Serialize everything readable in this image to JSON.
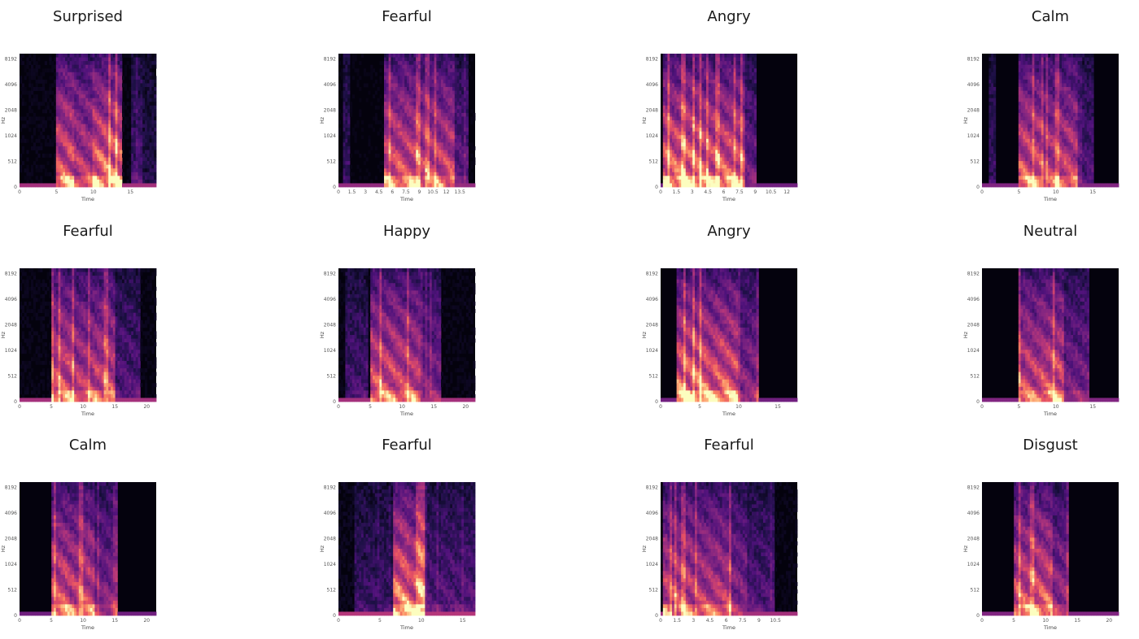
{
  "figure": {
    "colormap": "magma",
    "columns": 4,
    "rows": 3
  },
  "chart_data": [
    {
      "type": "heatmap",
      "title": "Surprised",
      "xlabel": "Time",
      "ylabel": "Hz",
      "xticks": [
        "0",
        "5",
        "10",
        "15"
      ],
      "yticks": [
        "0",
        "512",
        "1024",
        "2048",
        "4096",
        "8192"
      ],
      "x_max": 18.5,
      "segments": [
        [
          5,
          7.5,
          0.85
        ],
        [
          7.5,
          10,
          0.7
        ],
        [
          10,
          13.8,
          0.9
        ],
        [
          15,
          16.5,
          0.25
        ],
        [
          16.5,
          18.5,
          0.1
        ]
      ],
      "noise_floor": 0.2
    },
    {
      "type": "heatmap",
      "title": "Fearful",
      "xlabel": "Time",
      "ylabel": "Hz",
      "xticks": [
        "0",
        "1.5",
        "3",
        "4.5",
        "6",
        "7.5",
        "9",
        "10.5",
        "12",
        "13.5"
      ],
      "yticks": [
        "0",
        "512",
        "1024",
        "2048",
        "4096",
        "8192"
      ],
      "x_max": 15.2,
      "segments": [
        [
          0.5,
          1.2,
          0.2
        ],
        [
          5,
          9,
          0.8
        ],
        [
          9,
          13,
          0.75
        ],
        [
          13,
          14.5,
          0.35
        ]
      ],
      "noise_floor": 0.15
    },
    {
      "type": "heatmap",
      "title": "Angry",
      "xlabel": "Time",
      "ylabel": "Hz",
      "xticks": [
        "0",
        "1.5",
        "3",
        "4.5",
        "6",
        "7.5",
        "9",
        "10.5",
        "12"
      ],
      "yticks": [
        "0",
        "512",
        "1024",
        "2048",
        "4096",
        "8192"
      ],
      "x_max": 13.0,
      "segments": [
        [
          0.2,
          4,
          0.9
        ],
        [
          4,
          8,
          0.85
        ],
        [
          8,
          9.2,
          0.4
        ]
      ],
      "noise_floor": 0.05
    },
    {
      "type": "heatmap",
      "title": "Calm",
      "xlabel": "Time",
      "ylabel": "Hz",
      "xticks": [
        "0",
        "5",
        "10",
        "15"
      ],
      "yticks": [
        "0",
        "512",
        "1024",
        "2048",
        "4096",
        "8192"
      ],
      "x_max": 18.5,
      "segments": [
        [
          5,
          8,
          0.8
        ],
        [
          8,
          10,
          0.7
        ],
        [
          10,
          13,
          0.75
        ],
        [
          13,
          15,
          0.3
        ],
        [
          1,
          2,
          0.2
        ]
      ],
      "noise_floor": 0.1
    },
    {
      "type": "heatmap",
      "title": "Fearful",
      "xlabel": "Time",
      "ylabel": "Hz",
      "xticks": [
        "0",
        "5",
        "10",
        "15",
        "20"
      ],
      "yticks": [
        "0",
        "512",
        "1024",
        "2048",
        "4096",
        "8192"
      ],
      "x_max": 21.5,
      "segments": [
        [
          5,
          8.5,
          0.8
        ],
        [
          8.5,
          12,
          0.7
        ],
        [
          12,
          15,
          0.75
        ],
        [
          15,
          19,
          0.3
        ]
      ],
      "noise_floor": 0.2
    },
    {
      "type": "heatmap",
      "title": "Happy",
      "xlabel": "Time",
      "ylabel": "Hz",
      "xticks": [
        "0",
        "5",
        "10",
        "15",
        "20"
      ],
      "yticks": [
        "0",
        "512",
        "1024",
        "2048",
        "4096",
        "8192"
      ],
      "x_max": 21.5,
      "segments": [
        [
          1,
          4.5,
          0.25
        ],
        [
          5,
          9,
          0.8
        ],
        [
          9,
          13,
          0.75
        ],
        [
          13,
          16,
          0.45
        ]
      ],
      "noise_floor": 0.2
    },
    {
      "type": "heatmap",
      "title": "Angry",
      "xlabel": "Time",
      "ylabel": "Hz",
      "xticks": [
        "0",
        "5",
        "10",
        "15"
      ],
      "yticks": [
        "0",
        "512",
        "1024",
        "2048",
        "4096",
        "8192"
      ],
      "x_max": 17.5,
      "segments": [
        [
          2,
          6,
          0.9
        ],
        [
          6,
          10,
          0.85
        ],
        [
          10,
          12.5,
          0.5
        ]
      ],
      "noise_floor": 0.05
    },
    {
      "type": "heatmap",
      "title": "Neutral",
      "xlabel": "Time",
      "ylabel": "Hz",
      "xticks": [
        "0",
        "5",
        "10",
        "15"
      ],
      "yticks": [
        "0",
        "512",
        "1024",
        "2048",
        "4096",
        "8192"
      ],
      "x_max": 18.5,
      "segments": [
        [
          5,
          8,
          0.75
        ],
        [
          8,
          11,
          0.8
        ],
        [
          11,
          14.5,
          0.45
        ]
      ],
      "noise_floor": 0.1
    },
    {
      "type": "heatmap",
      "title": "Calm",
      "xlabel": "Time",
      "ylabel": "Hz",
      "xticks": [
        "0",
        "5",
        "10",
        "15",
        "20"
      ],
      "yticks": [
        "0",
        "512",
        "1024",
        "2048",
        "4096",
        "8192"
      ],
      "x_max": 21.5,
      "segments": [
        [
          5,
          8,
          0.8
        ],
        [
          8,
          12,
          0.75
        ],
        [
          12,
          15.5,
          0.5
        ]
      ],
      "noise_floor": 0.05
    },
    {
      "type": "heatmap",
      "title": "Fearful",
      "xlabel": "Time",
      "ylabel": "Hz",
      "xticks": [
        "0",
        "5",
        "10",
        "15"
      ],
      "yticks": [
        "0",
        "512",
        "1024",
        "2048",
        "4096",
        "8192"
      ],
      "x_max": 16.5,
      "segments": [
        [
          6.5,
          8.5,
          0.95
        ],
        [
          8.5,
          10.5,
          0.85
        ],
        [
          10.5,
          16.5,
          0.3
        ],
        [
          2,
          6.5,
          0.2
        ]
      ],
      "noise_floor": 0.25
    },
    {
      "type": "heatmap",
      "title": "Fearful",
      "xlabel": "Time",
      "ylabel": "Hz",
      "xticks": [
        "0",
        "1.5",
        "3",
        "4.5",
        "6",
        "7.5",
        "9",
        "10.5"
      ],
      "yticks": [
        "0",
        "512",
        "1024",
        "2048",
        "4096",
        "8192"
      ],
      "x_max": 12.5,
      "segments": [
        [
          0.3,
          3,
          0.75
        ],
        [
          3,
          6.5,
          0.7
        ],
        [
          6.5,
          8,
          0.5
        ],
        [
          8,
          10.5,
          0.3
        ]
      ],
      "noise_floor": 0.2
    },
    {
      "type": "heatmap",
      "title": "Disgust",
      "xlabel": "Time",
      "ylabel": "Hz",
      "xticks": [
        "0",
        "5",
        "10",
        "15",
        "20"
      ],
      "yticks": [
        "0",
        "512",
        "1024",
        "2048",
        "4096",
        "8192"
      ],
      "x_max": 21.5,
      "segments": [
        [
          5,
          8,
          0.8
        ],
        [
          8,
          11,
          0.85
        ],
        [
          11,
          13.5,
          0.55
        ]
      ],
      "noise_floor": 0.1
    }
  ]
}
